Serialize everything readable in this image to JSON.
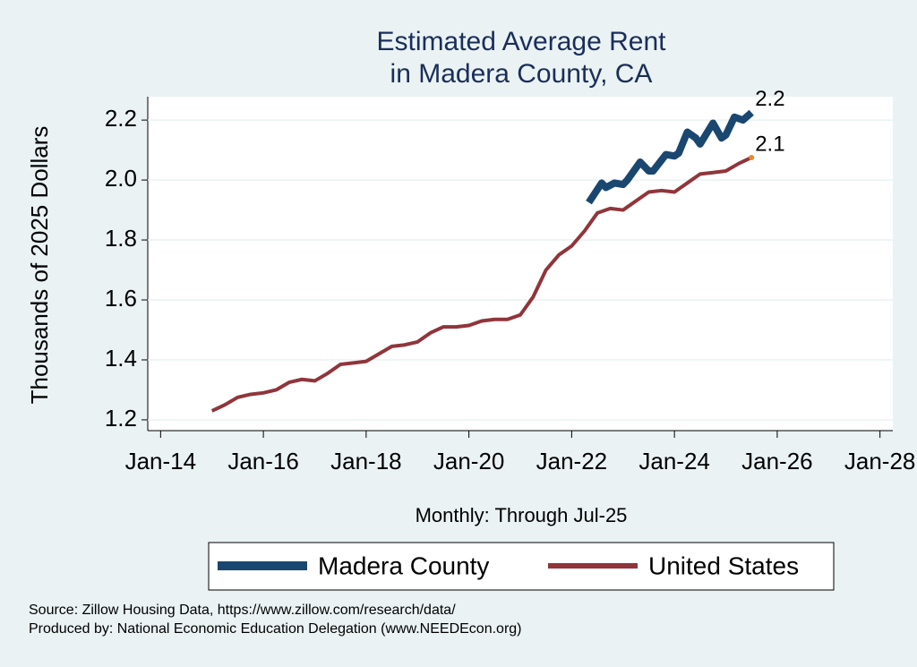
{
  "chart_data": {
    "type": "line",
    "title": [
      "Estimated Average Rent",
      "in Madera County, CA"
    ],
    "xlabel": "Monthly: Through Jul-25",
    "ylabel": "Thousands of 2025 Dollars",
    "xlim": [
      "2013-10",
      "2028-04"
    ],
    "xticks": [
      {
        "value": "2014-01",
        "label": "Jan-14"
      },
      {
        "value": "2016-01",
        "label": "Jan-16"
      },
      {
        "value": "2018-01",
        "label": "Jan-18"
      },
      {
        "value": "2020-01",
        "label": "Jan-20"
      },
      {
        "value": "2022-01",
        "label": "Jan-22"
      },
      {
        "value": "2024-01",
        "label": "Jan-24"
      },
      {
        "value": "2026-01",
        "label": "Jan-26"
      },
      {
        "value": "2028-01",
        "label": "Jan-28"
      }
    ],
    "ylim": [
      1.164,
      2.278
    ],
    "yticks": [
      {
        "value": 1.2,
        "label": "1.2"
      },
      {
        "value": 1.4,
        "label": "1.4"
      },
      {
        "value": 1.6,
        "label": "1.6"
      },
      {
        "value": 1.8,
        "label": "1.8"
      },
      {
        "value": 2.0,
        "label": "2.0"
      },
      {
        "value": 2.2,
        "label": "2.2"
      }
    ],
    "grid": true,
    "legend": "bottom",
    "series": [
      {
        "name": "Madera County",
        "color": "#1a476f",
        "width": 8,
        "x": [
          "2022-05",
          "2022-08",
          "2022-09",
          "2022-11",
          "2023-01",
          "2023-02",
          "2023-05",
          "2023-07",
          "2023-08",
          "2023-11",
          "2024-01",
          "2024-02",
          "2024-04",
          "2024-06",
          "2024-07",
          "2024-10",
          "2024-12",
          "2025-01",
          "2025-03",
          "2025-05",
          "2025-07"
        ],
        "values": [
          1.925,
          1.99,
          1.975,
          1.99,
          1.985,
          2.0,
          2.06,
          2.03,
          2.03,
          2.085,
          2.08,
          2.09,
          2.16,
          2.14,
          2.12,
          2.19,
          2.14,
          2.15,
          2.21,
          2.2,
          2.225
        ],
        "value_labels": [
          null,
          null,
          null,
          null,
          null,
          null,
          null,
          null,
          null,
          null,
          null,
          null,
          null,
          null,
          null,
          null,
          null,
          null,
          null,
          null,
          "2.2"
        ]
      },
      {
        "name": "United States",
        "color": "#90353b",
        "width": 4,
        "x": [
          "2015-01",
          "2015-04",
          "2015-07",
          "2015-10",
          "2016-01",
          "2016-04",
          "2016-07",
          "2016-10",
          "2017-01",
          "2017-04",
          "2017-07",
          "2017-10",
          "2018-01",
          "2018-04",
          "2018-07",
          "2018-10",
          "2019-01",
          "2019-04",
          "2019-07",
          "2019-10",
          "2020-01",
          "2020-04",
          "2020-07",
          "2020-10",
          "2021-01",
          "2021-04",
          "2021-07",
          "2021-10",
          "2022-01",
          "2022-04",
          "2022-07",
          "2022-10",
          "2023-01",
          "2023-04",
          "2023-07",
          "2023-10",
          "2024-01",
          "2024-04",
          "2024-07",
          "2024-10",
          "2025-01",
          "2025-04",
          "2025-07"
        ],
        "values": [
          1.23,
          1.25,
          1.275,
          1.285,
          1.29,
          1.3,
          1.325,
          1.335,
          1.33,
          1.355,
          1.385,
          1.39,
          1.395,
          1.42,
          1.445,
          1.45,
          1.46,
          1.49,
          1.51,
          1.51,
          1.515,
          1.53,
          1.535,
          1.535,
          1.55,
          1.61,
          1.7,
          1.75,
          1.78,
          1.83,
          1.89,
          1.905,
          1.9,
          1.93,
          1.96,
          1.965,
          1.96,
          1.99,
          2.02,
          2.025,
          2.03,
          2.055,
          2.075
        ],
        "value_labels": [
          null,
          null,
          null,
          null,
          null,
          null,
          null,
          null,
          null,
          null,
          null,
          null,
          null,
          null,
          null,
          null,
          null,
          null,
          null,
          null,
          null,
          null,
          null,
          null,
          null,
          null,
          null,
          null,
          null,
          null,
          null,
          null,
          null,
          null,
          null,
          null,
          null,
          null,
          null,
          null,
          null,
          null,
          "2.1"
        ]
      }
    ],
    "notes": [
      "Source: Zillow Housing Data, https://www.zillow.com/research/data/",
      "Produced by: National Economic Education Delegation (www.NEEDEcon.org)"
    ]
  }
}
